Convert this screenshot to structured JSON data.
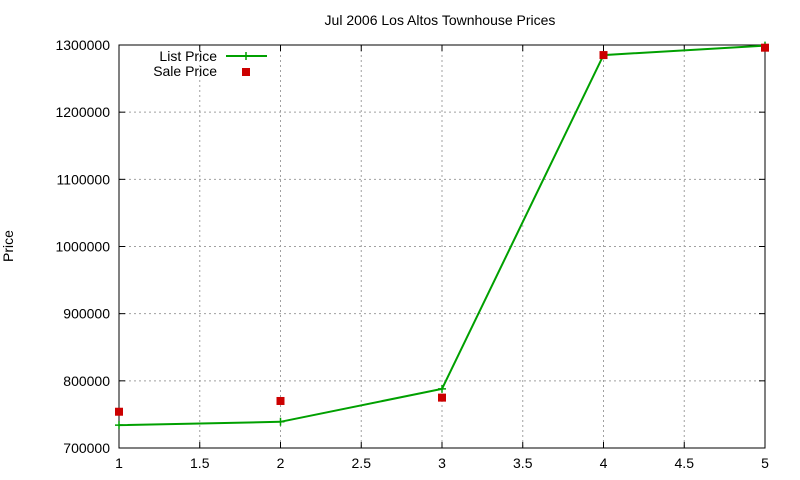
{
  "chart_data": {
    "type": "line",
    "title": "Jul 2006 Los Altos Townhouse Prices",
    "xlabel": "",
    "ylabel": "Price",
    "xlim": [
      1,
      5
    ],
    "ylim": [
      700000,
      1300000
    ],
    "x_ticks": [
      "1",
      "1.5",
      "2",
      "2.5",
      "3",
      "3.5",
      "4",
      "4.5",
      "5"
    ],
    "y_ticks": [
      "700000",
      "800000",
      "900000",
      "1000000",
      "1100000",
      "1200000",
      "1300000"
    ],
    "grid": true,
    "legend_position": "top-left",
    "x": [
      1,
      2,
      3,
      4,
      5
    ],
    "series": [
      {
        "name": "List Price",
        "style": "line+cross",
        "color": "#00a000",
        "values": [
          734000,
          739000,
          788000,
          1285000,
          1299000
        ]
      },
      {
        "name": "Sale Price",
        "style": "square-marker",
        "color": "#cc0000",
        "values": [
          754000,
          770000,
          775000,
          1285000,
          1296000
        ]
      }
    ]
  },
  "legend": {
    "list_label": "List Price",
    "sale_label": "Sale Price"
  }
}
